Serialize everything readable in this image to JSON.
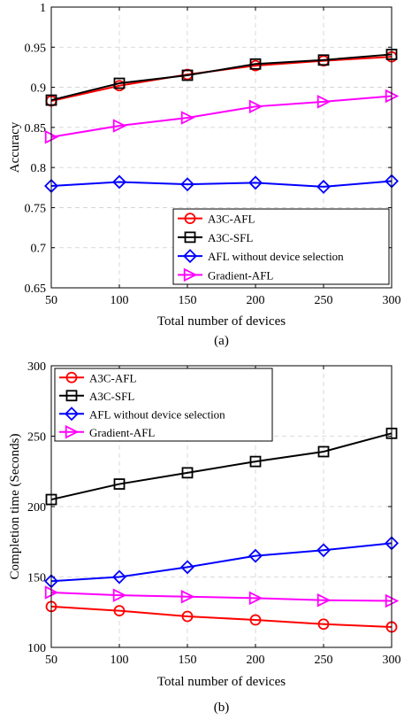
{
  "chart_data": [
    {
      "type": "line",
      "caption": "(a)",
      "xlabel": "Total number of devices",
      "ylabel": "Accuracy",
      "x": [
        50,
        100,
        150,
        200,
        250,
        300
      ],
      "xlim": [
        50,
        300
      ],
      "ylim": [
        0.65,
        1.0
      ],
      "xticks": [
        "50",
        "100",
        "150",
        "200",
        "250",
        "300"
      ],
      "yticks": [
        "0.65",
        "0.7",
        "0.75",
        "0.8",
        "0.85",
        "0.9",
        "0.95",
        "1"
      ],
      "ytick_values": [
        0.65,
        0.7,
        0.75,
        0.8,
        0.85,
        0.9,
        0.95,
        1.0
      ],
      "grid": true,
      "legend_position": "bottom-right",
      "series": [
        {
          "name": "A3C-AFL",
          "color": "#ff0000",
          "marker": "circle",
          "values": [
            0.883,
            0.902,
            0.916,
            0.927,
            0.933,
            0.938
          ]
        },
        {
          "name": "A3C-SFL",
          "color": "#000000",
          "marker": "square",
          "values": [
            0.884,
            0.905,
            0.915,
            0.929,
            0.934,
            0.941
          ]
        },
        {
          "name": "AFL without device selection",
          "color": "#0000ff",
          "marker": "diamond",
          "values": [
            0.777,
            0.782,
            0.779,
            0.781,
            0.776,
            0.783
          ]
        },
        {
          "name": "Gradient-AFL",
          "color": "#ff00ff",
          "marker": "triangle-right",
          "values": [
            0.838,
            0.852,
            0.862,
            0.876,
            0.882,
            0.889
          ]
        }
      ]
    },
    {
      "type": "line",
      "caption": "(b)",
      "xlabel": "Total number of devices",
      "ylabel": "Completion time (Seconds)",
      "x": [
        50,
        100,
        150,
        200,
        250,
        300
      ],
      "xlim": [
        50,
        300
      ],
      "ylim": [
        100,
        300
      ],
      "xticks": [
        "50",
        "100",
        "150",
        "200",
        "250",
        "300"
      ],
      "yticks": [
        "100",
        "150",
        "200",
        "250",
        "300"
      ],
      "ytick_values": [
        100,
        150,
        200,
        250,
        300
      ],
      "grid": true,
      "legend_position": "top-left",
      "series": [
        {
          "name": "A3C-AFL",
          "color": "#ff0000",
          "marker": "circle",
          "values": [
            129,
            126,
            122,
            119.5,
            116.5,
            114.5
          ]
        },
        {
          "name": "A3C-SFL",
          "color": "#000000",
          "marker": "square",
          "values": [
            205,
            216,
            224,
            232,
            239,
            252
          ]
        },
        {
          "name": "AFL without device selection",
          "color": "#0000ff",
          "marker": "diamond",
          "values": [
            147,
            150,
            157,
            165,
            169,
            174
          ]
        },
        {
          "name": "Gradient-AFL",
          "color": "#ff00ff",
          "marker": "triangle-right",
          "values": [
            139,
            137,
            136,
            135,
            133.5,
            133
          ]
        }
      ]
    }
  ]
}
